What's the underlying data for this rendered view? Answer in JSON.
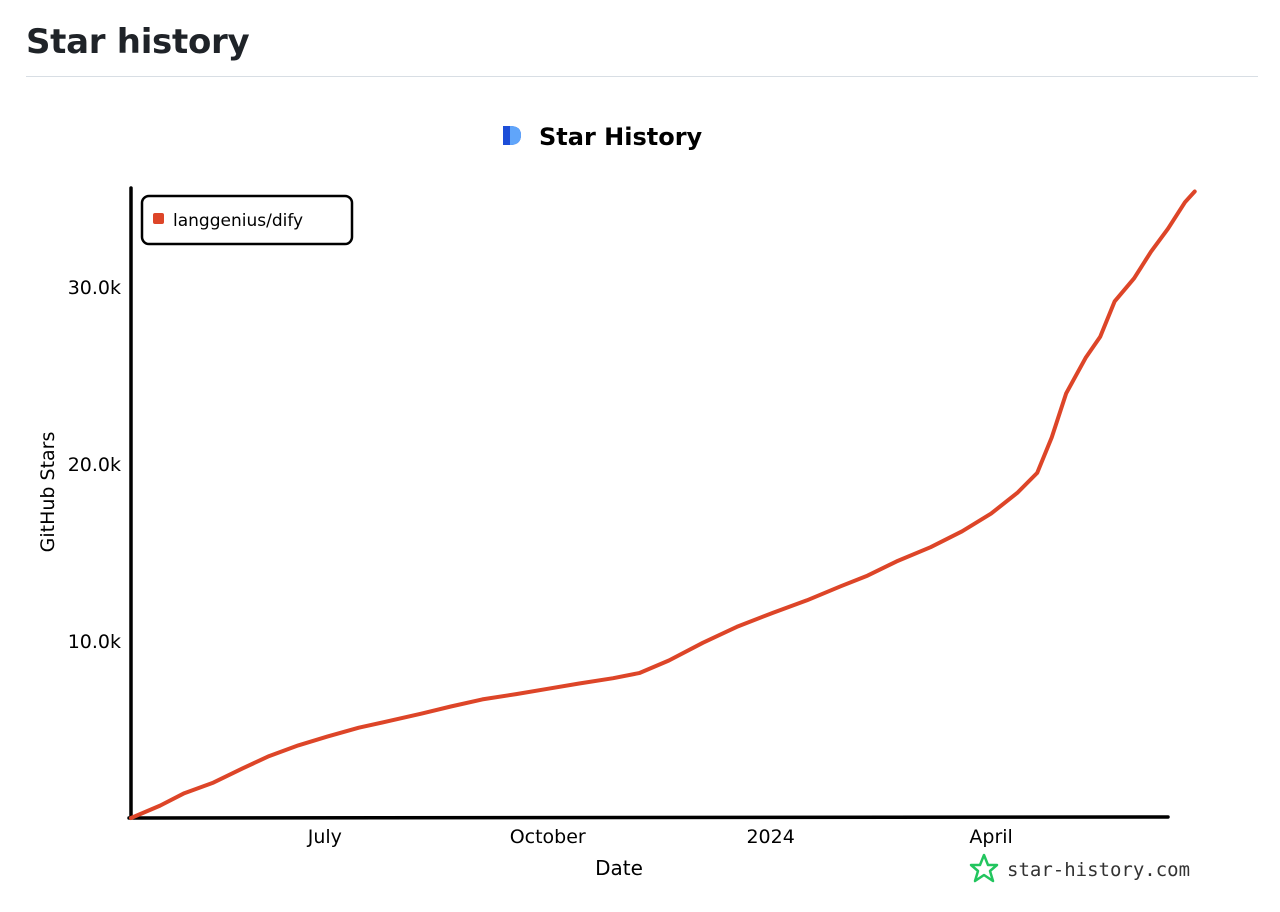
{
  "header": {
    "title": "Star history"
  },
  "chart_data": {
    "type": "line",
    "title": "Star History",
    "xlabel": "Date",
    "ylabel": "GitHub Stars",
    "x_ticks": [
      {
        "label": "July",
        "date": "2023-07-01"
      },
      {
        "label": "October",
        "date": "2023-10-01"
      },
      {
        "label": "2024",
        "date": "2024-01-01"
      },
      {
        "label": "April",
        "date": "2024-04-01"
      }
    ],
    "y_ticks": [
      {
        "label": "10.0k",
        "value": 10000
      },
      {
        "label": "20.0k",
        "value": 20000
      },
      {
        "label": "30.0k",
        "value": 30000
      }
    ],
    "xlim": [
      "2023-04-12",
      "2024-06-13"
    ],
    "ylim": [
      0,
      35600
    ],
    "legend": "top-left",
    "series": [
      {
        "name": "langgenius/dify",
        "color": "#dd4528",
        "points": [
          [
            "2023-04-12",
            0
          ],
          [
            "2023-04-24",
            700
          ],
          [
            "2023-05-04",
            1400
          ],
          [
            "2023-05-16",
            2000
          ],
          [
            "2023-05-28",
            2800
          ],
          [
            "2023-06-08",
            3500
          ],
          [
            "2023-06-20",
            4100
          ],
          [
            "2023-07-02",
            4600
          ],
          [
            "2023-07-15",
            5100
          ],
          [
            "2023-07-28",
            5500
          ],
          [
            "2023-08-10",
            5900
          ],
          [
            "2023-08-22",
            6300
          ],
          [
            "2023-09-04",
            6700
          ],
          [
            "2023-09-18",
            7000
          ],
          [
            "2023-10-01",
            7300
          ],
          [
            "2023-10-14",
            7600
          ],
          [
            "2023-10-28",
            7900
          ],
          [
            "2023-11-08",
            8200
          ],
          [
            "2023-11-20",
            8900
          ],
          [
            "2023-12-04",
            9900
          ],
          [
            "2023-12-18",
            10800
          ],
          [
            "2024-01-02",
            11600
          ],
          [
            "2024-01-16",
            12300
          ],
          [
            "2024-01-30",
            13100
          ],
          [
            "2024-02-10",
            13700
          ],
          [
            "2024-02-22",
            14500
          ],
          [
            "2024-03-07",
            15300
          ],
          [
            "2024-03-20",
            16200
          ],
          [
            "2024-04-01",
            17200
          ],
          [
            "2024-04-12",
            18400
          ],
          [
            "2024-04-20",
            19500
          ],
          [
            "2024-04-26",
            21500
          ],
          [
            "2024-05-02",
            24000
          ],
          [
            "2024-05-10",
            26000
          ],
          [
            "2024-05-16",
            27200
          ],
          [
            "2024-05-22",
            29200
          ],
          [
            "2024-05-30",
            30500
          ],
          [
            "2024-06-06",
            32000
          ],
          [
            "2024-06-13",
            33300
          ],
          [
            "2024-06-20",
            34800
          ],
          [
            "2024-06-24",
            35400
          ]
        ]
      }
    ]
  },
  "watermark": {
    "text": "star-history.com",
    "icon": "star-outline-icon",
    "color": "#22c55e"
  },
  "logo": {
    "icon": "star-history-logo-icon",
    "colors": [
      "#1d4ed8",
      "#60a5fa"
    ]
  }
}
